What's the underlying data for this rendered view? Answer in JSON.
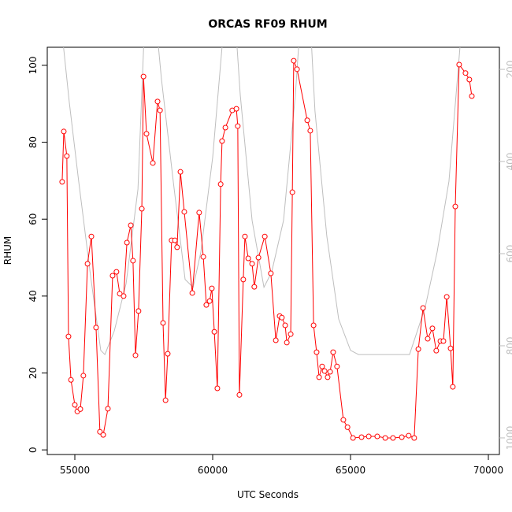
{
  "chart_data": {
    "type": "line",
    "title": "ORCAS RF09 RHUM",
    "x_label": "UTC Seconds",
    "y_label": "RHUM",
    "xlim": [
      54000,
      70400
    ],
    "ylim": [
      -1.2,
      104.7
    ],
    "y2lim": [
      1036,
      152
    ],
    "xticks": [
      55000,
      60000,
      65000,
      70000
    ],
    "yticks": [
      0,
      20,
      40,
      60,
      80,
      100
    ],
    "y2ticks": [
      200,
      400,
      600,
      800,
      1000
    ],
    "series": [
      {
        "color": "#bebebe",
        "axis": "y2",
        "x": [
          54570,
          54800,
          55140,
          55570,
          55940,
          56090,
          56430,
          56860,
          57290,
          57510,
          58000,
          58140,
          58570,
          59000,
          59290,
          59570,
          60000,
          60370,
          60860,
          61000,
          61430,
          61860,
          62140,
          62570,
          63000,
          63140,
          63570,
          63710,
          64140,
          64570,
          65000,
          65290,
          67140,
          67710,
          68140,
          68570,
          69000
        ],
        "values": [
          140,
          272,
          443,
          648,
          810,
          819,
          768,
          665,
          460,
          130,
          130,
          220,
          443,
          656,
          673,
          597,
          391,
          130,
          130,
          255,
          528,
          673,
          640,
          528,
          255,
          130,
          130,
          290,
          562,
          742,
          810,
          819,
          819,
          716,
          597,
          443,
          130
        ]
      },
      {
        "color": "#ff0000",
        "marker": "circle",
        "x": [
          54540,
          54600,
          54710,
          54770,
          54860,
          55000,
          55090,
          55200,
          55310,
          55460,
          55600,
          55770,
          55910,
          56030,
          56200,
          56370,
          56510,
          56630,
          56770,
          56890,
          57030,
          57110,
          57200,
          57310,
          57430,
          57490,
          57600,
          57830,
          58000,
          58090,
          58200,
          58290,
          58370,
          58510,
          58630,
          58710,
          58830,
          58970,
          59260,
          59510,
          59660,
          59770,
          59890,
          59970,
          60060,
          60170,
          60290,
          60340,
          60460,
          60710,
          60860,
          60910,
          60970,
          61110,
          61170,
          61290,
          61430,
          61510,
          61660,
          61890,
          62110,
          62290,
          62430,
          62510,
          62630,
          62690,
          62830,
          62890,
          62940,
          63060,
          63430,
          63540,
          63660,
          63770,
          63860,
          63970,
          64060,
          64170,
          64260,
          64370,
          64510,
          64740,
          64890,
          65090,
          65400,
          65660,
          65970,
          66260,
          66540,
          66860,
          67110,
          67310,
          67460,
          67630,
          67800,
          67970,
          68110,
          68260,
          68370,
          68490,
          68630,
          68710,
          68800,
          68940,
          69170,
          69310,
          69400
        ],
        "values": [
          69.7,
          82.8,
          76.4,
          29.5,
          18.2,
          11.7,
          10.0,
          10.6,
          19.3,
          48.4,
          55.5,
          31.8,
          4.7,
          3.9,
          10.7,
          45.3,
          46.3,
          40.6,
          40.0,
          53.9,
          58.4,
          49.2,
          24.6,
          36.1,
          62.7,
          97.1,
          82.2,
          74.6,
          90.6,
          88.3,
          33.0,
          12.9,
          25.0,
          54.5,
          54.5,
          52.7,
          72.3,
          61.9,
          40.8,
          61.7,
          50.2,
          37.7,
          38.7,
          42.0,
          30.7,
          16.0,
          69.1,
          80.3,
          83.8,
          88.3,
          88.7,
          84.2,
          14.3,
          44.3,
          55.5,
          49.8,
          48.4,
          42.4,
          50.0,
          55.5,
          45.9,
          28.5,
          34.8,
          34.4,
          32.4,
          27.9,
          30.1,
          67.0,
          101.2,
          99.0,
          85.7,
          83.0,
          32.4,
          25.4,
          18.9,
          21.7,
          20.5,
          18.9,
          20.3,
          25.4,
          21.7,
          7.8,
          5.9,
          3.1,
          3.3,
          3.5,
          3.5,
          3.1,
          3.1,
          3.3,
          3.7,
          3.1,
          26.2,
          36.9,
          28.9,
          31.6,
          25.8,
          28.3,
          28.3,
          39.8,
          26.4,
          16.4,
          63.3,
          100.2,
          98.0,
          96.3,
          92.0
        ]
      }
    ]
  }
}
